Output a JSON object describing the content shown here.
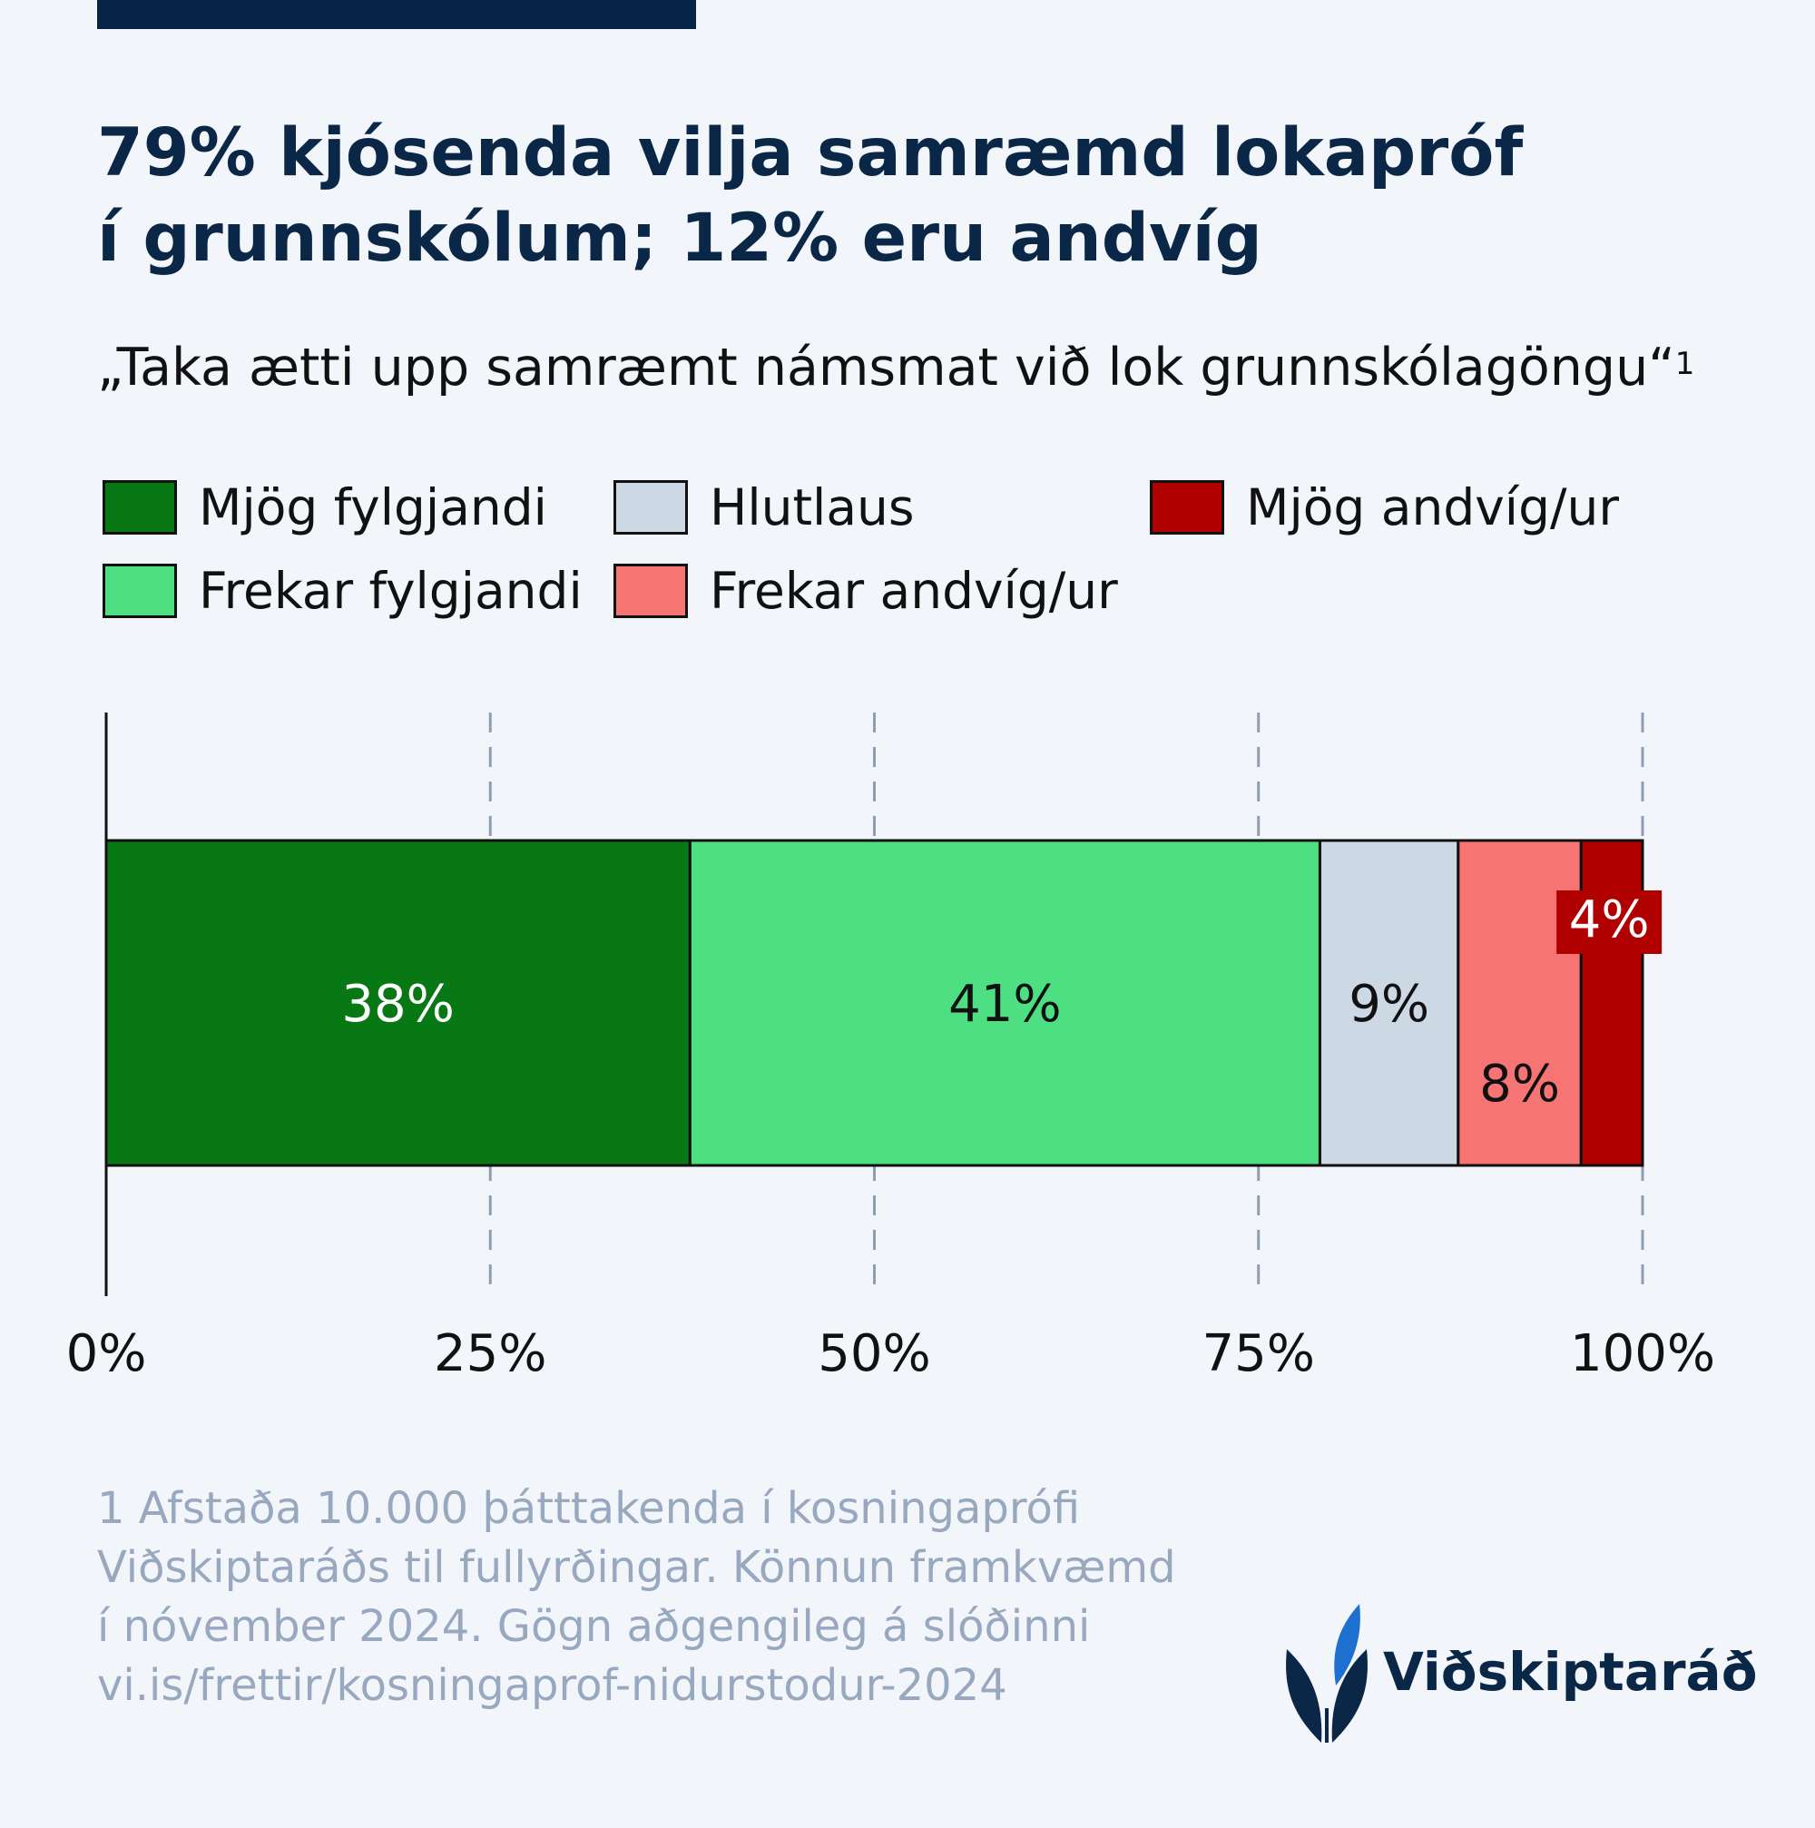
{
  "header": {
    "title_line1": "79% kjósenda vilja samræmd lokapróf",
    "title_line2": "í grunnskólum; 12% eru andvíg",
    "subtitle": "„Taka ætti upp samræmt námsmat við lok grunnskólagöngu“",
    "subtitle_ref": "1"
  },
  "legend": [
    {
      "label": "Mjög fylgjandi",
      "color": "#087814"
    },
    {
      "label": "Frekar fylgjandi",
      "color": "#4ddf82"
    },
    {
      "label": "Hlutlaus",
      "color": "#ccd8e4"
    },
    {
      "label": "Frekar andvíg/ur",
      "color": "#f67473"
    },
    {
      "label": "Mjög andvíg/ur",
      "color": "#b00000"
    }
  ],
  "chart_data": {
    "type": "bar",
    "orientation": "horizontal",
    "stacked": true,
    "title": "79% kjósenda vilja samræmd lokapróf í grunnskólum; 12% eru andvíg",
    "subtitle": "„Taka ætti upp samræmt námsmat við lok grunnskólagöngu“",
    "categories": [
      ""
    ],
    "series": [
      {
        "name": "Mjög fylgjandi",
        "values": [
          38
        ],
        "label": "38%",
        "color": "#087814",
        "label_color": "#ffffff"
      },
      {
        "name": "Frekar fylgjandi",
        "values": [
          41
        ],
        "label": "41%",
        "color": "#4ddf82",
        "label_color": "#111111"
      },
      {
        "name": "Hlutlaus",
        "values": [
          9
        ],
        "label": "9%",
        "color": "#ccd8e4",
        "label_color": "#111111"
      },
      {
        "name": "Frekar andvíg/ur",
        "values": [
          8
        ],
        "label": "8%",
        "color": "#f67473",
        "label_color": "#111111"
      },
      {
        "name": "Mjög andvíg/ur",
        "values": [
          4
        ],
        "label": "4%",
        "color": "#b00000",
        "label_color": "#ffffff"
      }
    ],
    "xlim": [
      0,
      100
    ],
    "x_ticks": [
      0,
      25,
      50,
      75,
      100
    ],
    "x_tick_labels": [
      "0%",
      "25%",
      "50%",
      "75%",
      "100%"
    ],
    "grid": "vertical dashed",
    "legend_position": "top",
    "xlabel": "",
    "ylabel": ""
  },
  "footnote": {
    "line1": "1 Afstaða 10.000 þátttakenda í kosningaprófi",
    "line2": "Viðskiptaráðs til fullyrðingar. Könnun framkvæmd",
    "line3": "í nóvember 2024. Gögn aðgengileg á slóðinni",
    "line4": "vi.is/frettir/kosningaprof-nidurstodur-2024"
  },
  "logo": {
    "name": "Viðskiptaráð",
    "icon": "leaf-logo-icon",
    "colors": {
      "dark": "#0b2748",
      "accent": "#1d6fd0"
    }
  }
}
